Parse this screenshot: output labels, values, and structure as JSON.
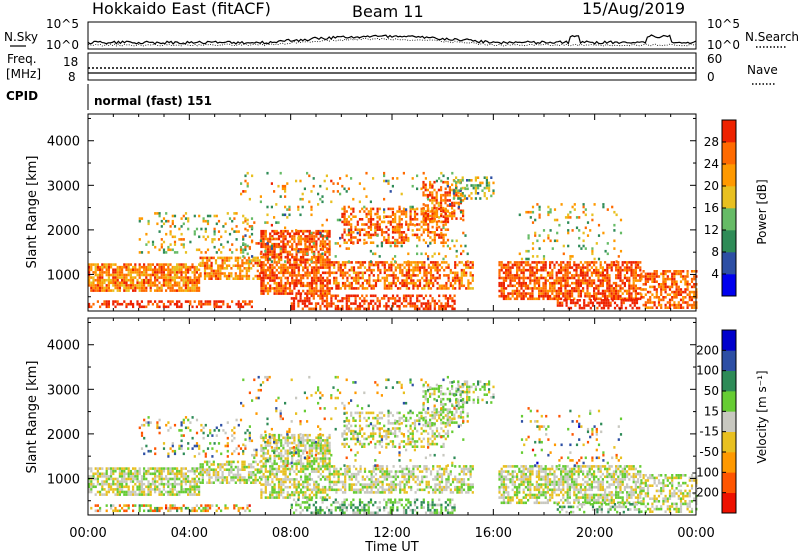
{
  "header": {
    "radar": "Hokkaido East (fitACF)",
    "beam": "Beam 11",
    "date": "15/Aug/2019"
  },
  "top_panels": {
    "nsky_label": "N.Sky",
    "nsky_hi": "10^5",
    "nsky_lo": "10^0",
    "nsearch_label": "N.Search",
    "freq_label_1": "Freq.",
    "freq_label_2": "[MHz]",
    "freq_hi": "18",
    "freq_lo": "8",
    "nave_hi": "60",
    "nave_lo": "0",
    "nave_label": "Nave",
    "cpid_label": "CPID",
    "cpid_value": "normal (fast) 151"
  },
  "chart_data": [
    {
      "type": "heatmap",
      "name": "power",
      "xlabel": "",
      "ylabel": "Slant Range [km]",
      "y_ticks": [
        "1000",
        "2000",
        "3000",
        "4000"
      ],
      "ylim": [
        180,
        4600
      ],
      "xlim": [
        0,
        24
      ],
      "colorbar_label": "Power [dB]",
      "colorbar_ticks": [
        "4",
        "8",
        "12",
        "16",
        "20",
        "24",
        "28"
      ],
      "colorbar_colors": [
        "#0000ee",
        "#2d4fa4",
        "#2e8b57",
        "#66bb66",
        "#e8c020",
        "#ff9900",
        "#ff6a00",
        "#ee2200"
      ],
      "blocks": [
        {
          "t0": 0.0,
          "t1": 4.4,
          "r0": 650,
          "r1": 1250,
          "d": 0.8,
          "v": 0.75,
          "s": 0.2
        },
        {
          "t0": 0.0,
          "t1": 6.5,
          "r0": 250,
          "r1": 420,
          "d": 0.5,
          "v": 0.92,
          "s": 0.1
        },
        {
          "t0": 2.0,
          "t1": 6.5,
          "r0": 1500,
          "r1": 2400,
          "d": 0.18,
          "v": 0.55,
          "s": 0.3
        },
        {
          "t0": 4.4,
          "t1": 6.8,
          "r0": 900,
          "r1": 1400,
          "d": 0.7,
          "v": 0.7,
          "s": 0.2
        },
        {
          "t0": 6.8,
          "t1": 9.5,
          "r0": 550,
          "r1": 2000,
          "d": 0.72,
          "v": 0.85,
          "s": 0.15
        },
        {
          "t0": 8.0,
          "t1": 14.5,
          "r0": 250,
          "r1": 550,
          "d": 0.55,
          "v": 0.9,
          "s": 0.12
        },
        {
          "t0": 9.5,
          "t1": 15.2,
          "r0": 700,
          "r1": 1300,
          "d": 0.6,
          "v": 0.8,
          "s": 0.2
        },
        {
          "t0": 10.0,
          "t1": 14.2,
          "r0": 1700,
          "r1": 2500,
          "d": 0.45,
          "v": 0.82,
          "s": 0.2
        },
        {
          "t0": 13.2,
          "t1": 14.8,
          "r0": 2200,
          "r1": 3100,
          "d": 0.5,
          "v": 0.8,
          "s": 0.2
        },
        {
          "t0": 14.4,
          "t1": 16.0,
          "r0": 2700,
          "r1": 3200,
          "d": 0.45,
          "v": 0.45,
          "s": 0.25
        },
        {
          "t0": 6.0,
          "t1": 15.0,
          "r0": 1300,
          "r1": 3300,
          "d": 0.07,
          "v": 0.55,
          "s": 0.35
        },
        {
          "t0": 16.2,
          "t1": 21.8,
          "r0": 450,
          "r1": 1300,
          "d": 0.7,
          "v": 0.85,
          "s": 0.15
        },
        {
          "t0": 18.5,
          "t1": 21.8,
          "r0": 250,
          "r1": 450,
          "d": 0.6,
          "v": 0.95,
          "s": 0.1
        },
        {
          "t0": 17.0,
          "t1": 21.0,
          "r0": 1300,
          "r1": 2600,
          "d": 0.1,
          "v": 0.55,
          "s": 0.3
        },
        {
          "t0": 21.8,
          "t1": 24.0,
          "r0": 250,
          "r1": 1100,
          "d": 0.6,
          "v": 0.82,
          "s": 0.15
        }
      ]
    },
    {
      "type": "heatmap",
      "name": "velocity",
      "xlabel": "Time UT",
      "ylabel": "Slant Range [km]",
      "x_ticks": [
        "00:00",
        "04:00",
        "08:00",
        "12:00",
        "16:00",
        "20:00",
        "00:00"
      ],
      "y_ticks": [
        "1000",
        "2000",
        "3000",
        "4000"
      ],
      "ylim": [
        180,
        4600
      ],
      "xlim": [
        0,
        24
      ],
      "colorbar_label": "Velocity [m s⁻¹]",
      "colorbar_ticks": [
        "200",
        "100",
        "50",
        "15",
        "-15",
        "-50",
        "-100",
        "-200"
      ],
      "colorbar_colors": [
        "#0000cc",
        "#2d4fa4",
        "#2e8b57",
        "#66cc33",
        "#c8c8c0",
        "#e8c020",
        "#ff9900",
        "#ff5500",
        "#ee1100"
      ],
      "blocks": [
        {
          "t0": 0.0,
          "t1": 4.4,
          "r0": 650,
          "r1": 1250,
          "d": 0.7,
          "v": 0.5,
          "s": 0.15
        },
        {
          "t0": 0.0,
          "t1": 6.5,
          "r0": 250,
          "r1": 420,
          "d": 0.45,
          "v": 0.6,
          "s": 0.3
        },
        {
          "t0": 2.0,
          "t1": 6.5,
          "r0": 1500,
          "r1": 2400,
          "d": 0.15,
          "v": 0.5,
          "s": 0.4
        },
        {
          "t0": 4.4,
          "t1": 6.8,
          "r0": 900,
          "r1": 1400,
          "d": 0.65,
          "v": 0.5,
          "s": 0.15
        },
        {
          "t0": 6.8,
          "t1": 9.5,
          "r0": 550,
          "r1": 2000,
          "d": 0.65,
          "v": 0.5,
          "s": 0.15
        },
        {
          "t0": 8.0,
          "t1": 14.5,
          "r0": 250,
          "r1": 550,
          "d": 0.5,
          "v": 0.38,
          "s": 0.15
        },
        {
          "t0": 9.5,
          "t1": 15.2,
          "r0": 700,
          "r1": 1300,
          "d": 0.55,
          "v": 0.5,
          "s": 0.12
        },
        {
          "t0": 10.0,
          "t1": 14.2,
          "r0": 1700,
          "r1": 2500,
          "d": 0.4,
          "v": 0.5,
          "s": 0.15
        },
        {
          "t0": 13.2,
          "t1": 14.8,
          "r0": 2200,
          "r1": 3100,
          "d": 0.45,
          "v": 0.46,
          "s": 0.12
        },
        {
          "t0": 14.4,
          "t1": 16.0,
          "r0": 2700,
          "r1": 3200,
          "d": 0.4,
          "v": 0.45,
          "s": 0.15
        },
        {
          "t0": 6.0,
          "t1": 15.0,
          "r0": 1300,
          "r1": 3300,
          "d": 0.06,
          "v": 0.5,
          "s": 0.35
        },
        {
          "t0": 16.2,
          "t1": 21.8,
          "r0": 450,
          "r1": 1300,
          "d": 0.65,
          "v": 0.5,
          "s": 0.12
        },
        {
          "t0": 18.5,
          "t1": 21.8,
          "r0": 250,
          "r1": 450,
          "d": 0.5,
          "v": 0.4,
          "s": 0.15
        },
        {
          "t0": 17.0,
          "t1": 21.0,
          "r0": 1300,
          "r1": 2600,
          "d": 0.08,
          "v": 0.5,
          "s": 0.4
        },
        {
          "t0": 21.8,
          "t1": 24.0,
          "r0": 250,
          "r1": 1100,
          "d": 0.55,
          "v": 0.5,
          "s": 0.15
        }
      ]
    }
  ]
}
